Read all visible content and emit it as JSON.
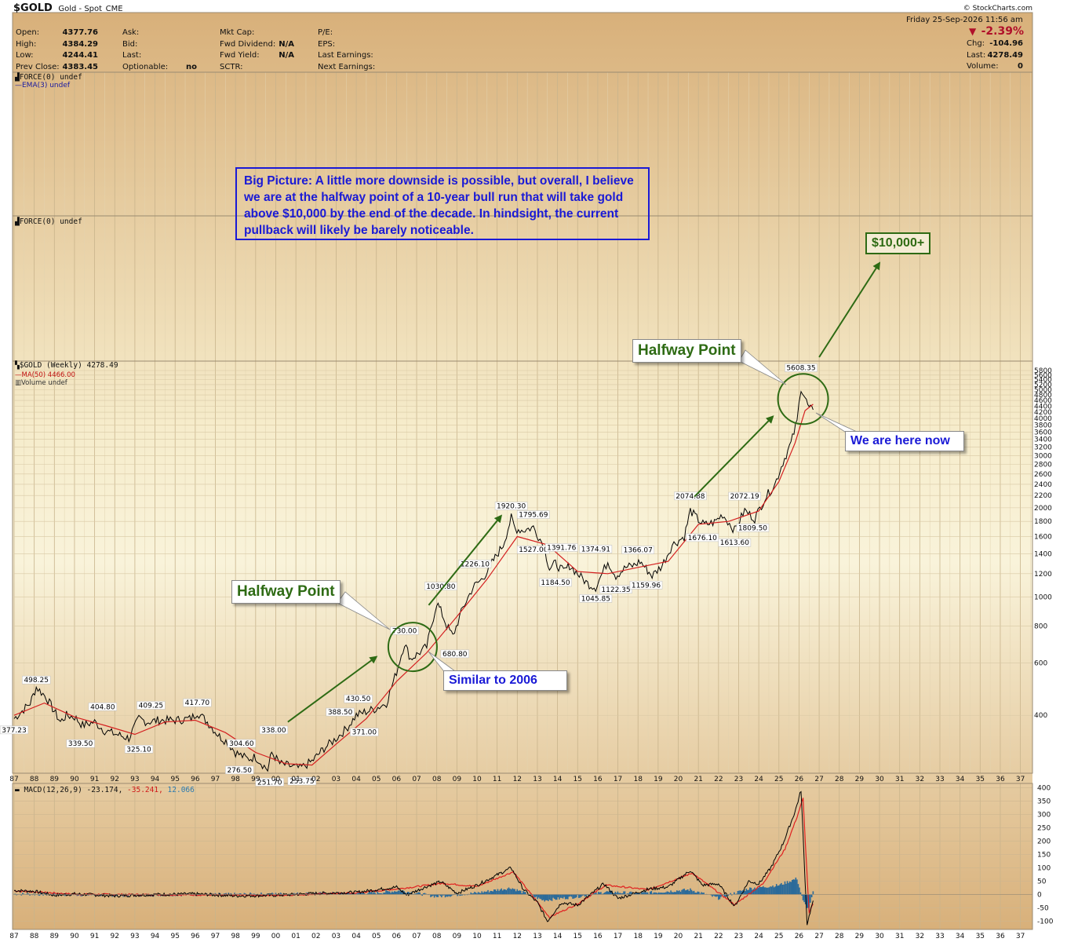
{
  "header": {
    "symbol": "$GOLD",
    "name": "Gold - Spot",
    "exchange": "CME",
    "copyright": "© StockCharts.com",
    "date": "Friday  25-Sep-2026  11:56 am",
    "fields_left": [
      {
        "label": "Open:",
        "value": "4377.76"
      },
      {
        "label": "High:",
        "value": "4384.29"
      },
      {
        "label": "Low:",
        "value": "4244.41"
      },
      {
        "label": "Prev Close:",
        "value": "4383.45"
      }
    ],
    "fields_mid1": [
      {
        "label": "Ask:",
        "value": ""
      },
      {
        "label": "Bid:",
        "value": ""
      },
      {
        "label": "Last:",
        "value": ""
      },
      {
        "label": "Optionable:",
        "value": "no"
      }
    ],
    "fields_mid2": [
      {
        "label": "Mkt Cap:",
        "value": ""
      },
      {
        "label": "Fwd Dividend:",
        "value": "N/A"
      },
      {
        "label": "Fwd Yield:",
        "value": "N/A"
      },
      {
        "label": "SCTR:",
        "value": ""
      }
    ],
    "fields_mid3": [
      {
        "label": "P/E:",
        "value": ""
      },
      {
        "label": "EPS:",
        "value": ""
      },
      {
        "label": "Last Earnings:",
        "value": ""
      },
      {
        "label": "Next Earnings:",
        "value": ""
      }
    ],
    "pct_change": "-2.39%",
    "fields_right": [
      {
        "label": "Chg:",
        "value": "-104.96"
      },
      {
        "label": "Last:",
        "value": "4278.49"
      },
      {
        "label": "Volume:",
        "value": "0"
      }
    ]
  },
  "panels": {
    "force1_label": "FORCE(0) undef",
    "ema_label": "EMA(3) undef",
    "force2_label": "FORCE(0) undef",
    "price_label": "$GOLD (Weekly) 4278.49",
    "ma_label": "MA(50) 4466.00",
    "volume_label": "Volume undef",
    "macd_label": "MACD(12,26,9) -23.174,",
    "macd_signal": "-35.241,",
    "macd_hist": "12.066"
  },
  "annotations": {
    "big_picture": "Big Picture: A little more downside is possible, but overall, I believe we are at the halfway point of a 10-year bull run that will take gold above $10,000 by the end of the decade. In hindsight, the current pullback will likely be barely noticeable.",
    "halfway_1": "Halfway Point",
    "halfway_2": "Halfway Point",
    "similar": "Similar to 2006",
    "here_now": "We are here now",
    "target": "$10,000+"
  },
  "colors": {
    "price_line": "#000000",
    "ma_line": "#d42020",
    "macd_line": "#000000",
    "signal_line": "#e02020",
    "histogram": "#2a6a9a",
    "annotation_green": "#2e6b14",
    "annotation_blue": "#1a1ad6"
  },
  "chart_data": [
    {
      "type": "line",
      "title": "$GOLD (Weekly) 4278.49",
      "scale": "log",
      "ylim": [
        260,
        5800
      ],
      "y_ticks": [
        400,
        600,
        800,
        1000,
        1200,
        1400,
        1600,
        1800,
        2000,
        2200,
        2400,
        2600,
        2800,
        3000,
        3200,
        3400,
        3600,
        3800,
        4000,
        4200,
        4400,
        4600,
        4800,
        5000,
        5200,
        5400,
        5600,
        5800
      ],
      "x_ticks": [
        "87",
        "88",
        "89",
        "90",
        "91",
        "92",
        "93",
        "94",
        "95",
        "96",
        "97",
        "98",
        "99",
        "00",
        "01",
        "02",
        "03",
        "04",
        "05",
        "06",
        "07",
        "08",
        "09",
        "10",
        "11",
        "12",
        "13",
        "14",
        "15",
        "16",
        "17",
        "18",
        "19",
        "20",
        "21",
        "22",
        "23",
        "24",
        "25",
        "26",
        "27",
        "28",
        "29",
        "30",
        "31",
        "32",
        "33",
        "34",
        "35",
        "36",
        "37"
      ],
      "series": [
        {
          "name": "$GOLD",
          "x": [
            1987.0,
            1987.8,
            1988.1,
            1988.6,
            1989.3,
            1989.6,
            1990.0,
            1990.4,
            1991.0,
            1991.5,
            1992.1,
            1992.7,
            1993.2,
            1993.6,
            1994.2,
            1995.0,
            1995.8,
            1996.1,
            1996.6,
            1997.2,
            1997.6,
            1998.0,
            1998.6,
            1999.0,
            1999.6,
            1999.8,
            2000.2,
            2000.7,
            2001.2,
            2001.8,
            2002.4,
            2002.9,
            2003.5,
            2004.0,
            2004.4,
            2004.9,
            2005.5,
            2006.0,
            2006.4,
            2006.7,
            2007.0,
            2007.5,
            2008.0,
            2008.2,
            2008.5,
            2008.8,
            2009.3,
            2009.8,
            2010.3,
            2010.9,
            2011.3,
            2011.7,
            2011.9,
            2012.3,
            2012.8,
            2013.3,
            2013.6,
            2013.9,
            2014.3,
            2014.6,
            2015.0,
            2015.5,
            2015.9,
            2016.5,
            2016.9,
            2017.4,
            2017.8,
            2018.1,
            2018.7,
            2019.2,
            2019.7,
            2020.3,
            2020.6,
            2021.0,
            2021.3,
            2021.8,
            2022.2,
            2022.8,
            2023.3,
            2023.8,
            2024.3,
            2024.8,
            2025.2,
            2025.6,
            2025.9,
            2026.1,
            2026.3,
            2026.5,
            2026.7
          ],
          "values": [
            390,
            440,
            498,
            460,
            380,
            400,
            395,
            370,
            380,
            355,
            345,
            335,
            390,
            380,
            385,
            385,
            390,
            410,
            380,
            340,
            325,
            300,
            285,
            290,
            262,
            300,
            275,
            270,
            265,
            280,
            310,
            330,
            360,
            400,
            410,
            420,
            440,
            560,
            700,
            620,
            640,
            680,
            960,
            900,
            800,
            740,
            920,
            1080,
            1160,
            1360,
            1500,
            1850,
            1700,
            1680,
            1720,
            1500,
            1250,
            1300,
            1220,
            1280,
            1200,
            1110,
            1080,
            1320,
            1180,
            1260,
            1280,
            1320,
            1180,
            1280,
            1500,
            1600,
            1960,
            1820,
            1750,
            1790,
            1900,
            1680,
            1960,
            1840,
            2150,
            2400,
            2850,
            3300,
            3900,
            5100,
            4700,
            4300,
            4278
          ]
        },
        {
          "name": "MA(50)",
          "x": [
            1987.0,
            1988.5,
            1990.0,
            1991.5,
            1993.0,
            1994.5,
            1996.0,
            1997.5,
            1999.0,
            2000.5,
            2001.8,
            2003.0,
            2004.5,
            2006.0,
            2007.5,
            2009.0,
            2010.5,
            2012.0,
            2013.5,
            2015.0,
            2016.5,
            2018.0,
            2019.5,
            2021.0,
            2022.5,
            2024.0,
            2025.0,
            2025.8,
            2026.3,
            2026.7
          ],
          "values": [
            400,
            440,
            395,
            370,
            345,
            380,
            385,
            350,
            300,
            275,
            272,
            320,
            390,
            520,
            650,
            860,
            1150,
            1600,
            1500,
            1220,
            1200,
            1260,
            1320,
            1760,
            1800,
            1950,
            2450,
            3300,
            4250,
            4466
          ]
        }
      ],
      "annotations": [
        {
          "x": 1987.0,
          "y": 377.23,
          "text": "377.23"
        },
        {
          "x": 1988.1,
          "y": 498.25,
          "text": "498.25"
        },
        {
          "x": 1990.3,
          "y": 339.5,
          "text": "339.50"
        },
        {
          "x": 1991.4,
          "y": 404.8,
          "text": "404.80"
        },
        {
          "x": 1993.2,
          "y": 325.1,
          "text": "325.10"
        },
        {
          "x": 1993.8,
          "y": 409.25,
          "text": "409.25"
        },
        {
          "x": 1996.1,
          "y": 417.7,
          "text": "417.70"
        },
        {
          "x": 1998.3,
          "y": 304.6,
          "text": "304.60"
        },
        {
          "x": 1998.2,
          "y": 276.5,
          "text": "276.50"
        },
        {
          "x": 1999.9,
          "y": 338.0,
          "text": "338.00"
        },
        {
          "x": 1999.7,
          "y": 251.7,
          "text": "251.70"
        },
        {
          "x": 2001.3,
          "y": 253.75,
          "text": "253.75"
        },
        {
          "x": 2003.2,
          "y": 388.5,
          "text": "388.50"
        },
        {
          "x": 2004.1,
          "y": 430.5,
          "text": "430.50"
        },
        {
          "x": 2004.4,
          "y": 371.0,
          "text": "371.00"
        },
        {
          "x": 2006.4,
          "y": 730.0,
          "text": "730.00"
        },
        {
          "x": 2008.2,
          "y": 1030.8,
          "text": "1030.80"
        },
        {
          "x": 2008.9,
          "y": 680.8,
          "text": "680.80"
        },
        {
          "x": 2009.9,
          "y": 1226.1,
          "text": "1226.10"
        },
        {
          "x": 2011.7,
          "y": 1920.3,
          "text": "1920.30"
        },
        {
          "x": 2012.8,
          "y": 1795.69,
          "text": "1795.69"
        },
        {
          "x": 2012.8,
          "y": 1527.0,
          "text": "1527.00"
        },
        {
          "x": 2014.2,
          "y": 1391.76,
          "text": "1391.76"
        },
        {
          "x": 2013.9,
          "y": 1184.5,
          "text": "1184.50"
        },
        {
          "x": 2015.9,
          "y": 1374.91,
          "text": "1374.91"
        },
        {
          "x": 2015.9,
          "y": 1045.85,
          "text": "1045.85"
        },
        {
          "x": 2016.9,
          "y": 1122.35,
          "text": "1122.35"
        },
        {
          "x": 2018.0,
          "y": 1366.07,
          "text": "1366.07"
        },
        {
          "x": 2018.4,
          "y": 1159.96,
          "text": "1159.96"
        },
        {
          "x": 2020.6,
          "y": 2074.88,
          "text": "2074.88"
        },
        {
          "x": 2021.2,
          "y": 1676.1,
          "text": "1676.10"
        },
        {
          "x": 2023.3,
          "y": 2072.19,
          "text": "2072.19"
        },
        {
          "x": 2022.8,
          "y": 1613.6,
          "text": "1613.60"
        },
        {
          "x": 2023.7,
          "y": 1809.5,
          "text": "1809.50"
        },
        {
          "x": 2026.1,
          "y": 5608.35,
          "text": "5608.35"
        }
      ]
    },
    {
      "type": "line",
      "title": "MACD(12,26,9) -23.174, -35.241, 12.066",
      "ylim": [
        -125,
        410
      ],
      "y_ticks": [
        -100,
        -50,
        0,
        50,
        100,
        150,
        200,
        250,
        300,
        350,
        400
      ],
      "series": [
        {
          "name": "MACD(12,26,9)",
          "x": [
            1987.0,
            1988.0,
            1989.0,
            1990.0,
            1992.0,
            1994.0,
            1996.0,
            1998.0,
            2000.0,
            2002.0,
            2004.0,
            2006.0,
            2006.5,
            2007.5,
            2008.2,
            2009.0,
            2010.0,
            2011.7,
            2012.3,
            2013.0,
            2013.5,
            2014.2,
            2015.0,
            2016.3,
            2017.0,
            2018.5,
            2019.5,
            2020.6,
            2021.2,
            2022.0,
            2022.8,
            2023.5,
            2024.0,
            2024.6,
            2025.2,
            2025.8,
            2026.1,
            2026.4,
            2026.7
          ],
          "values": [
            15,
            12,
            -3,
            2,
            -5,
            0,
            2,
            -5,
            -3,
            4,
            8,
            28,
            -2,
            30,
            48,
            5,
            35,
            100,
            20,
            -30,
            -100,
            -30,
            -40,
            40,
            -15,
            20,
            28,
            90,
            35,
            40,
            -45,
            50,
            40,
            100,
            190,
            310,
            390,
            -110,
            -23.174
          ]
        },
        {
          "name": "Signal",
          "x": [
            1987.0,
            1990.0,
            1995.0,
            2000.0,
            2004.0,
            2006.2,
            2008.3,
            2010.0,
            2011.8,
            2013.6,
            2015.0,
            2016.4,
            2018.5,
            2020.7,
            2022.8,
            2024.2,
            2025.3,
            2025.9,
            2026.2,
            2026.5,
            2026.7
          ],
          "values": [
            14,
            1,
            -1,
            -3,
            6,
            22,
            42,
            30,
            85,
            -85,
            -35,
            35,
            18,
            80,
            -38,
            40,
            170,
            290,
            360,
            -70,
            -35.241
          ]
        },
        {
          "name": "Histogram",
          "x": [
            1987,
            1992,
            2000,
            2005,
            2006.2,
            2008,
            2010,
            2011.7,
            2013.3,
            2015,
            2016.4,
            2018,
            2020.6,
            2022,
            2023.5,
            2025,
            2025.9,
            2026.2,
            2026.5,
            2026.7
          ],
          "values": [
            2,
            -3,
            2,
            6,
            15,
            -8,
            6,
            25,
            -22,
            -8,
            10,
            4,
            18,
            -14,
            22,
            35,
            60,
            -25,
            -60,
            12.066
          ]
        }
      ]
    }
  ]
}
